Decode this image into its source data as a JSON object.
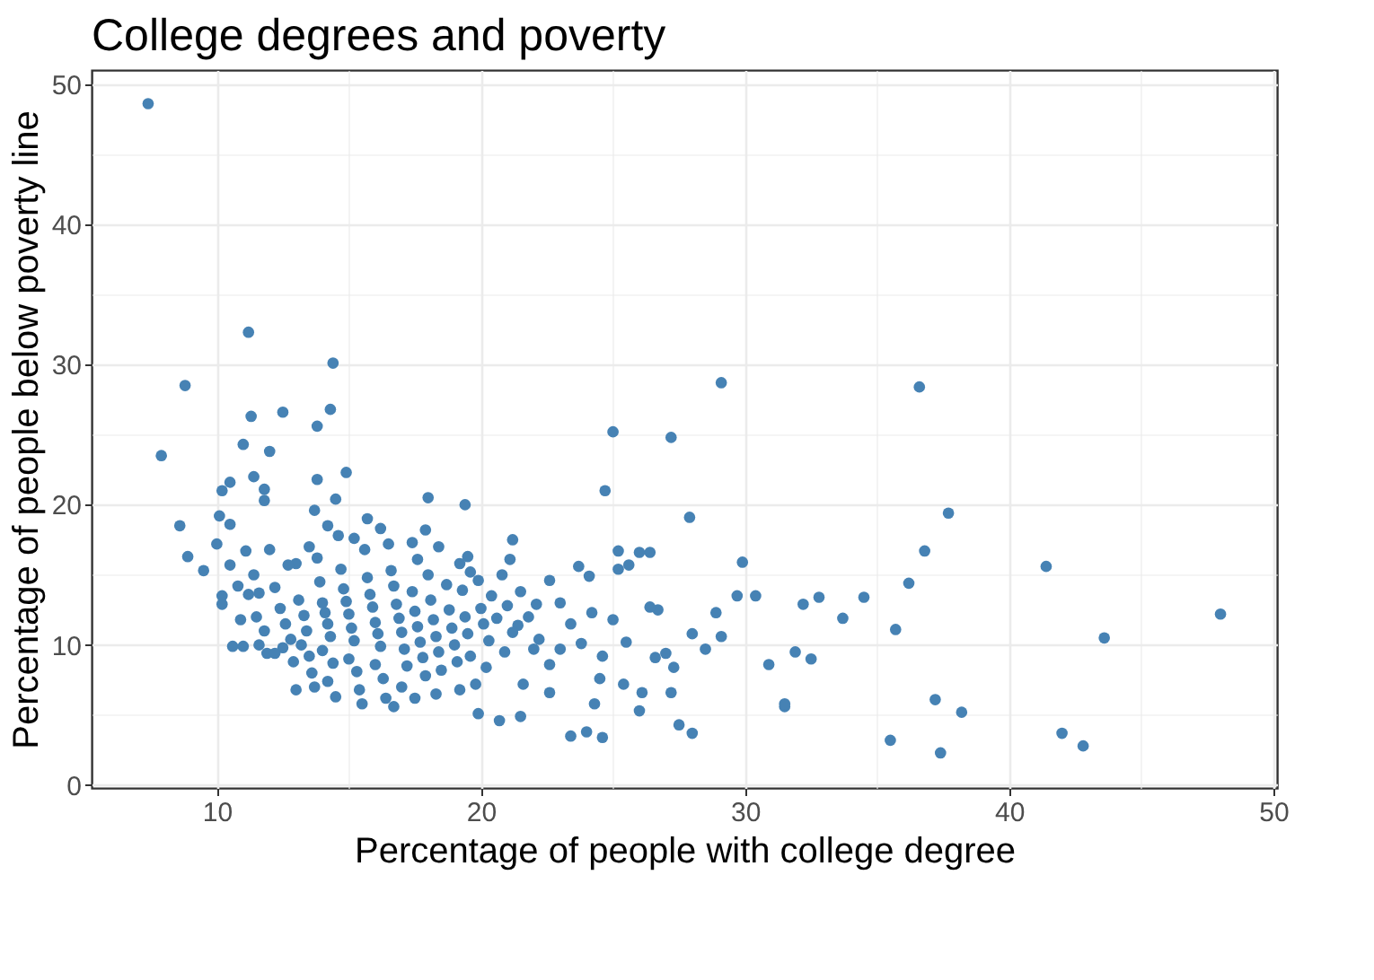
{
  "chart_data": {
    "type": "scatter",
    "title": "College degrees and poverty",
    "xlabel": "Percentage of people with college degree",
    "ylabel": "Percentage of people below poverty line",
    "xlim": [
      5.26,
      50.14
    ],
    "ylim": [
      -0.2,
      51
    ],
    "xticks": [
      10,
      {
        "value": 15,
        "label": null
      },
      20,
      {
        "value": 25,
        "label": null
      },
      30,
      {
        "value": 35,
        "label": null
      },
      40,
      {
        "value": 45,
        "label": null
      },
      50
    ],
    "yticks": [
      0,
      {
        "value": 5,
        "label": null
      },
      10,
      {
        "value": 15,
        "label": null
      },
      20,
      {
        "value": 25,
        "label": null
      },
      30,
      {
        "value": 35,
        "label": null
      },
      40,
      {
        "value": 45,
        "label": null
      },
      50
    ],
    "grid": true,
    "marker": "circle",
    "series": [
      {
        "color": "#4682b4",
        "x": [
          7.4,
          8.8,
          7.9,
          8.6,
          8.9,
          9.5,
          11.2,
          14.4,
          11.3,
          12.5,
          14.3,
          13.8,
          11.0,
          12.0,
          10.2,
          10.5,
          14.9,
          13.8,
          11.4,
          11.8,
          11.8,
          13.7,
          14.5,
          10.1,
          10.5,
          10.0,
          10.2,
          10.2,
          10.5,
          11.1,
          29.1,
          36.6,
          27.2,
          25.0,
          24.7,
          27.9,
          37.7,
          36.8,
          41.4,
          29.9,
          36.2,
          26.0,
          26.4,
          25.2,
          25.2,
          24.1,
          25.6,
          23.7,
          30.4,
          29.7,
          32.8,
          34.5,
          32.2,
          33.7,
          26.7,
          26.4,
          35.7,
          28.0,
          28.9,
          43.6,
          48.0,
          30.9,
          31.9,
          32.5,
          31.5,
          31.5,
          27.0,
          28.5,
          29.1,
          27.3,
          26.6,
          37.2,
          38.2,
          35.5,
          37.4,
          42.0,
          42.8,
          28.0,
          27.5,
          27.2,
          26.1,
          24.6,
          24.0,
          23.4,
          24.5,
          24.3,
          25.4,
          26.0,
          22.6,
          22.6,
          23.0,
          21.6,
          21.5,
          20.7,
          19.9,
          20.2,
          20.9,
          22.0,
          21.4,
          22.1,
          21.2,
          21.1,
          19.6,
          19.5,
          18.0,
          19.4,
          17.9,
          11.2,
          11.5,
          11.8,
          11.6,
          11.9,
          12.2,
          12.4,
          12.6,
          12.8,
          12.5,
          12.9,
          13.0,
          13.1,
          13.3,
          13.4,
          13.2,
          13.5,
          13.6,
          13.8,
          13.9,
          14.0,
          14.1,
          14.2,
          14.3,
          14.0,
          14.4,
          14.2,
          14.6,
          14.7,
          14.8,
          14.9,
          15.0,
          15.1,
          15.2,
          15.0,
          15.3,
          15.4,
          15.5,
          15.6,
          15.7,
          15.8,
          15.9,
          16.0,
          16.1,
          16.2,
          16.0,
          16.3,
          16.4,
          16.5,
          16.6,
          16.7,
          16.8,
          16.9,
          17.0,
          17.1,
          17.2,
          17.0,
          17.4,
          17.5,
          17.6,
          17.7,
          17.8,
          17.6,
          17.9,
          18.0,
          18.1,
          18.2,
          18.3,
          18.4,
          18.5,
          18.3,
          18.7,
          18.8,
          18.9,
          19.0,
          19.1,
          19.2,
          19.3,
          19.4,
          19.5,
          19.6,
          19.8,
          19.9,
          20.0,
          20.1,
          20.3,
          20.4,
          20.6,
          20.8,
          21.0,
          21.2,
          21.5,
          21.8,
          22.2,
          22.6,
          23.0,
          23.4,
          23.8,
          24.2,
          24.6,
          25.0,
          25.5,
          13.0,
          14.5,
          13.7,
          16.7,
          17.5,
          19.2,
          12.2,
          11.6,
          11.4,
          12.7,
          13.5,
          14.2,
          15.2,
          15.7,
          16.2,
          17.4,
          18.4,
          12.0,
          10.8,
          10.9,
          10.6,
          11.0
        ],
        "values": [
          48.6,
          28.5,
          23.5,
          18.5,
          16.3,
          15.3,
          32.3,
          30.1,
          26.3,
          26.6,
          26.8,
          25.6,
          24.3,
          23.8,
          21.0,
          21.6,
          22.3,
          21.8,
          22.0,
          21.1,
          20.3,
          19.6,
          20.4,
          19.2,
          18.6,
          17.2,
          13.5,
          12.9,
          15.7,
          16.7,
          28.7,
          28.4,
          24.8,
          25.2,
          21.0,
          19.1,
          19.4,
          16.7,
          15.6,
          15.9,
          14.4,
          16.6,
          16.6,
          16.7,
          15.4,
          14.9,
          15.7,
          15.6,
          13.5,
          13.5,
          13.4,
          13.4,
          12.9,
          11.9,
          12.5,
          12.7,
          11.1,
          10.8,
          12.3,
          10.5,
          12.2,
          8.6,
          9.5,
          9.0,
          5.6,
          5.8,
          9.4,
          9.7,
          10.6,
          8.4,
          9.1,
          6.1,
          5.2,
          3.2,
          2.3,
          3.7,
          2.8,
          3.7,
          4.3,
          6.6,
          6.6,
          3.4,
          3.8,
          3.5,
          7.6,
          5.8,
          7.2,
          5.3,
          6.6,
          8.6,
          9.7,
          7.2,
          4.9,
          4.6,
          5.1,
          8.4,
          9.5,
          9.7,
          11.4,
          12.9,
          17.5,
          16.1,
          15.2,
          16.3,
          20.5,
          20.0,
          18.2,
          13.6,
          12.0,
          11.0,
          10.0,
          9.4,
          14.1,
          12.6,
          11.5,
          10.4,
          9.8,
          8.8,
          15.8,
          13.2,
          12.1,
          11.0,
          10.0,
          9.2,
          8.0,
          16.2,
          14.5,
          13.0,
          12.3,
          11.5,
          10.6,
          9.6,
          8.7,
          7.4,
          17.8,
          15.4,
          14.0,
          13.1,
          12.2,
          11.2,
          10.3,
          9.0,
          8.1,
          6.8,
          5.8,
          16.8,
          14.8,
          13.6,
          12.7,
          11.6,
          10.8,
          9.9,
          8.6,
          7.6,
          6.2,
          17.2,
          15.3,
          14.2,
          12.9,
          11.9,
          10.9,
          9.7,
          8.5,
          7.0,
          13.8,
          12.4,
          11.3,
          10.2,
          9.1,
          16.1,
          7.8,
          15.0,
          13.2,
          11.8,
          10.6,
          9.5,
          8.2,
          6.5,
          14.3,
          12.5,
          11.2,
          10.0,
          8.8,
          15.8,
          13.9,
          12.0,
          10.8,
          9.2,
          7.2,
          14.6,
          12.6,
          11.5,
          10.3,
          13.5,
          11.9,
          15.0,
          12.8,
          10.9,
          13.8,
          12.0,
          10.4,
          14.6,
          13.0,
          11.5,
          10.1,
          12.3,
          9.2,
          11.8,
          10.2,
          6.8,
          6.3,
          7.0,
          5.6,
          6.2,
          6.8,
          9.4,
          13.7,
          15.0,
          15.7,
          17.0,
          18.5,
          17.6,
          19.0,
          18.3,
          17.3,
          17.0,
          16.8,
          14.2,
          11.8,
          9.9,
          9.9
        ]
      }
    ]
  }
}
